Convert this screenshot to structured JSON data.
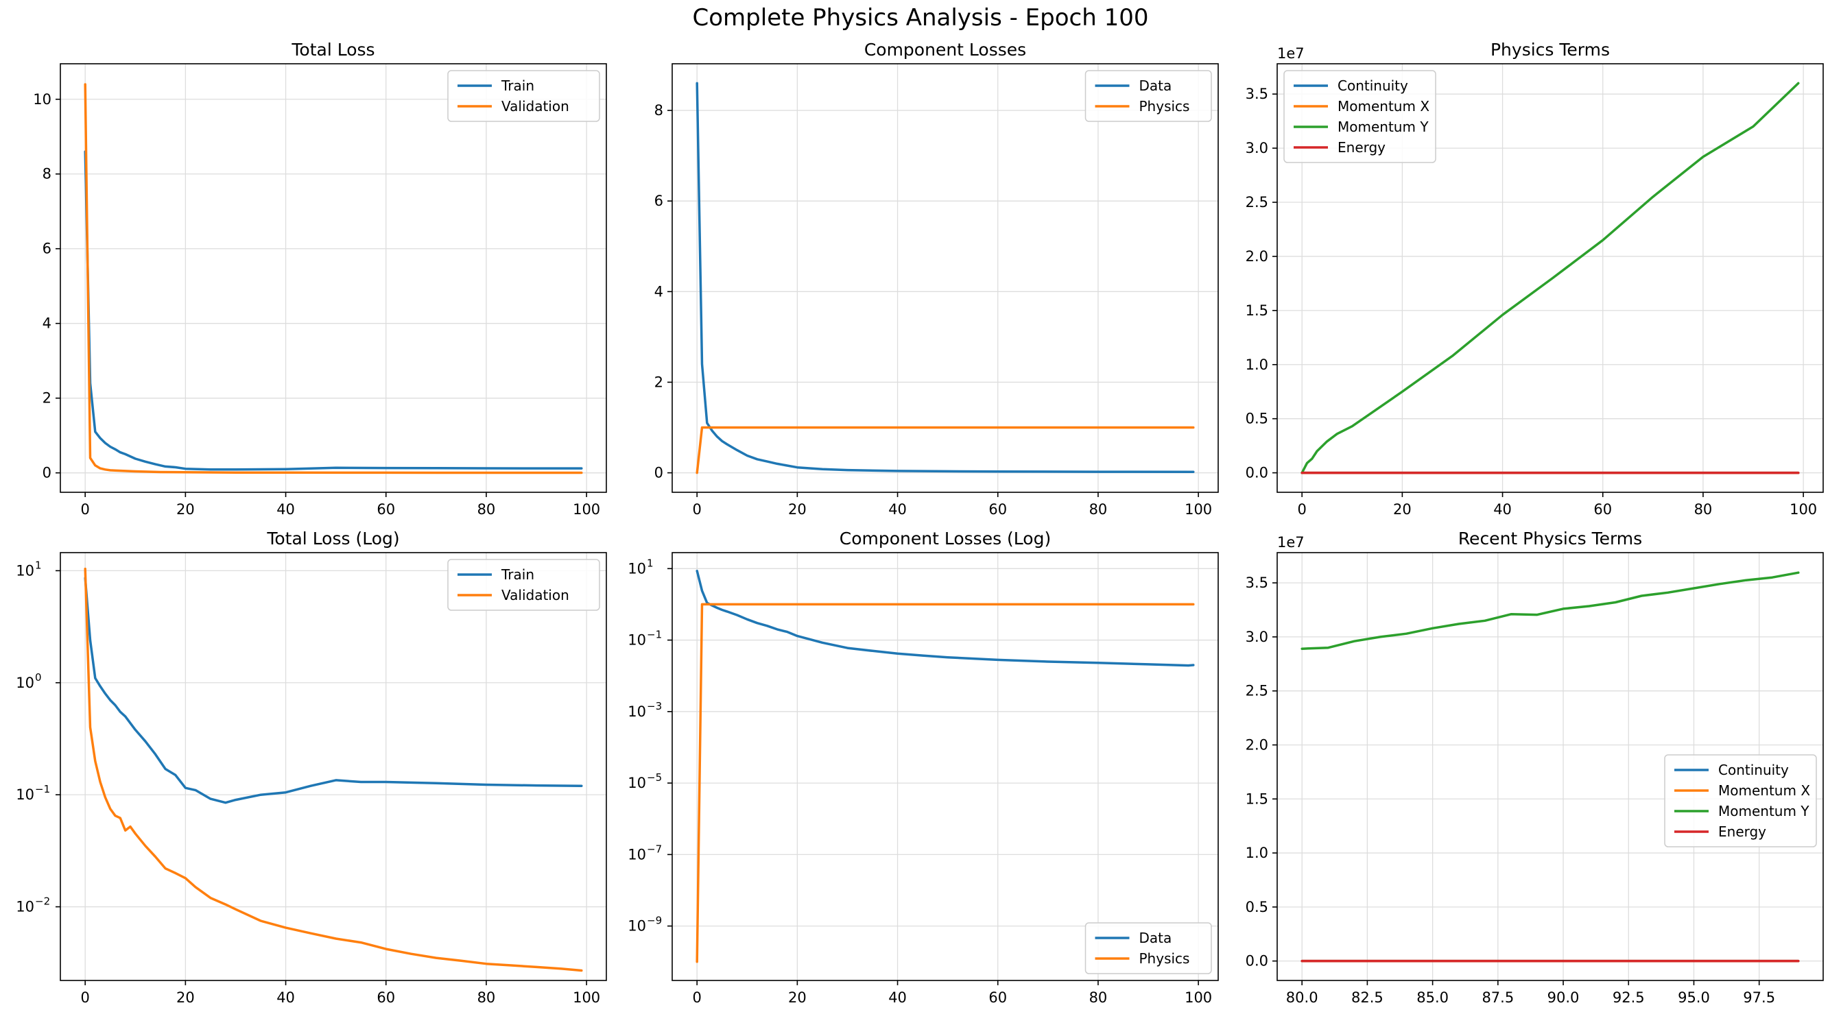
{
  "figure": {
    "suptitle": "Complete Physics Analysis - Epoch 100"
  },
  "colors": {
    "c0": "#1f77b4",
    "c1": "#ff7f0e",
    "c2": "#2ca02c",
    "c3": "#d62728",
    "grid": "#dddddd"
  },
  "chart_data": [
    {
      "id": "p1",
      "type": "line",
      "title": "Total Loss",
      "xlabel": "",
      "ylabel": "",
      "xlim": [
        -4.95,
        103.95
      ],
      "ylim": [
        -0.52,
        10.95
      ],
      "yscale": "linear",
      "xticks": [
        0,
        20,
        40,
        60,
        80,
        100
      ],
      "yticks": [
        0,
        2,
        4,
        6,
        8,
        10
      ],
      "grid": true,
      "legend": "top-right",
      "series": [
        {
          "name": "Train",
          "color": "c0",
          "x": [
            0,
            1,
            2,
            3,
            4,
            5,
            6,
            7,
            8,
            10,
            12,
            14,
            16,
            18,
            20,
            25,
            30,
            40,
            50,
            60,
            70,
            80,
            90,
            99
          ],
          "y": [
            8.6,
            2.4,
            1.1,
            0.93,
            0.8,
            0.7,
            0.63,
            0.55,
            0.5,
            0.38,
            0.3,
            0.23,
            0.17,
            0.15,
            0.11,
            0.09,
            0.09,
            0.1,
            0.135,
            0.13,
            0.127,
            0.123,
            0.121,
            0.12
          ]
        },
        {
          "name": "Validation",
          "color": "c1",
          "x": [
            0,
            1,
            2,
            3,
            4,
            5,
            6,
            8,
            10,
            15,
            20,
            30,
            40,
            60,
            80,
            99
          ],
          "y": [
            10.4,
            0.4,
            0.2,
            0.12,
            0.09,
            0.07,
            0.062,
            0.05,
            0.04,
            0.022,
            0.017,
            0.009,
            0.006,
            0.004,
            0.003,
            0.0028
          ]
        }
      ]
    },
    {
      "id": "p2",
      "type": "line",
      "title": "Component Losses",
      "xlabel": "",
      "ylabel": "",
      "xlim": [
        -4.95,
        103.95
      ],
      "ylim": [
        -0.43,
        9.03
      ],
      "yscale": "linear",
      "xticks": [
        0,
        20,
        40,
        60,
        80,
        100
      ],
      "yticks": [
        0,
        2,
        4,
        6,
        8
      ],
      "grid": true,
      "legend": "top-right",
      "series": [
        {
          "name": "Data",
          "color": "c0",
          "x": [
            0,
            1,
            2,
            3,
            4,
            5,
            6,
            8,
            10,
            12,
            14,
            16,
            20,
            25,
            30,
            40,
            50,
            60,
            80,
            99
          ],
          "y": [
            8.6,
            2.4,
            1.1,
            0.93,
            0.8,
            0.7,
            0.63,
            0.5,
            0.38,
            0.3,
            0.25,
            0.2,
            0.12,
            0.08,
            0.06,
            0.04,
            0.033,
            0.028,
            0.022,
            0.02
          ]
        },
        {
          "name": "Physics",
          "color": "c1",
          "x": [
            0,
            1,
            2,
            99
          ],
          "y": [
            0,
            1,
            1,
            1
          ]
        }
      ]
    },
    {
      "id": "p3",
      "type": "line",
      "title": "Physics Terms",
      "xlabel": "",
      "ylabel": "",
      "xlim": [
        -4.95,
        103.95
      ],
      "ylim": [
        -1800000,
        37800000
      ],
      "yscale": "linear",
      "offset_text": "1e7",
      "xticks": [
        0,
        20,
        40,
        60,
        80,
        100
      ],
      "yticks": [
        0,
        5000000,
        10000000,
        15000000,
        20000000,
        25000000,
        30000000,
        35000000
      ],
      "ytick_labels": [
        "0.0",
        "0.5",
        "1.0",
        "1.5",
        "2.0",
        "2.5",
        "3.0",
        "3.5"
      ],
      "grid": true,
      "legend": "top-left",
      "series": [
        {
          "name": "Continuity",
          "color": "c0",
          "x": [
            0,
            99
          ],
          "y": [
            0,
            0
          ]
        },
        {
          "name": "Momentum X",
          "color": "c1",
          "x": [
            0,
            99
          ],
          "y": [
            0,
            0
          ]
        },
        {
          "name": "Momentum Y",
          "color": "c2",
          "x": [
            0,
            1,
            2,
            3,
            5,
            7,
            10,
            20,
            30,
            40,
            50,
            60,
            70,
            80,
            90,
            99
          ],
          "y": [
            0,
            900000,
            1300000,
            2000000,
            2900000,
            3600000,
            4300000,
            7500000,
            10800000,
            14600000,
            18000000,
            21500000,
            25500000,
            29200000,
            32000000,
            36000000
          ]
        },
        {
          "name": "Energy",
          "color": "c3",
          "x": [
            0,
            99
          ],
          "y": [
            0,
            0
          ]
        }
      ]
    },
    {
      "id": "p4",
      "type": "line",
      "title": "Total Loss (Log)",
      "xlabel": "",
      "ylabel": "",
      "xlim": [
        -4.95,
        103.95
      ],
      "ylim": [
        0.0022,
        14.5
      ],
      "yscale": "log",
      "xticks": [
        0,
        20,
        40,
        60,
        80,
        100
      ],
      "yticks": [
        0.01,
        0.1,
        1,
        10
      ],
      "ytick_labels": [
        [
          "10",
          "−2"
        ],
        [
          "10",
          "−1"
        ],
        [
          "10",
          "0"
        ],
        [
          "10",
          "1"
        ]
      ],
      "grid": true,
      "legend": "top-right",
      "series": [
        {
          "name": "Train",
          "color": "c0",
          "x": [
            0,
            1,
            2,
            3,
            4,
            5,
            6,
            7,
            8,
            10,
            12,
            14,
            16,
            18,
            20,
            22,
            25,
            28,
            30,
            35,
            40,
            45,
            50,
            55,
            60,
            70,
            80,
            90,
            99
          ],
          "y": [
            8.6,
            2.4,
            1.1,
            0.93,
            0.8,
            0.7,
            0.63,
            0.55,
            0.5,
            0.38,
            0.3,
            0.23,
            0.17,
            0.15,
            0.115,
            0.11,
            0.092,
            0.085,
            0.09,
            0.1,
            0.105,
            0.12,
            0.135,
            0.13,
            0.13,
            0.127,
            0.123,
            0.121,
            0.12
          ]
        },
        {
          "name": "Validation",
          "color": "c1",
          "x": [
            0,
            1,
            2,
            3,
            4,
            5,
            6,
            7,
            8,
            9,
            10,
            12,
            14,
            16,
            18,
            20,
            22,
            25,
            28,
            30,
            35,
            40,
            45,
            50,
            55,
            60,
            65,
            70,
            75,
            80,
            85,
            90,
            95,
            99
          ],
          "y": [
            10.4,
            0.4,
            0.2,
            0.13,
            0.095,
            0.075,
            0.065,
            0.062,
            0.048,
            0.052,
            0.045,
            0.035,
            0.028,
            0.022,
            0.02,
            0.018,
            0.015,
            0.012,
            0.0105,
            0.0095,
            0.0075,
            0.0065,
            0.0058,
            0.0052,
            0.0048,
            0.0042,
            0.0038,
            0.0035,
            0.0033,
            0.0031,
            0.003,
            0.0029,
            0.0028,
            0.0027
          ]
        }
      ]
    },
    {
      "id": "p5",
      "type": "line",
      "title": "Component Losses (Log)",
      "xlabel": "",
      "ylabel": "",
      "xlim": [
        -4.95,
        103.95
      ],
      "ylim": [
        3e-11,
        28
      ],
      "yscale": "log",
      "xticks": [
        0,
        20,
        40,
        60,
        80,
        100
      ],
      "yticks": [
        1e-09,
        1e-07,
        1e-05,
        0.001,
        0.1,
        10
      ],
      "ytick_labels": [
        [
          "10",
          "−9"
        ],
        [
          "10",
          "−7"
        ],
        [
          "10",
          "−5"
        ],
        [
          "10",
          "−3"
        ],
        [
          "10",
          "−1"
        ],
        [
          "10",
          "1"
        ]
      ],
      "grid": true,
      "legend": "bottom-right",
      "series": [
        {
          "name": "Data",
          "color": "c0",
          "x": [
            0,
            1,
            2,
            3,
            4,
            5,
            6,
            8,
            10,
            12,
            14,
            16,
            18,
            20,
            22,
            25,
            30,
            35,
            40,
            45,
            50,
            60,
            70,
            80,
            90,
            98,
            99
          ],
          "y": [
            8.6,
            2.4,
            1.1,
            0.93,
            0.8,
            0.7,
            0.63,
            0.5,
            0.38,
            0.3,
            0.25,
            0.2,
            0.17,
            0.13,
            0.11,
            0.085,
            0.06,
            0.05,
            0.042,
            0.037,
            0.033,
            0.028,
            0.025,
            0.023,
            0.021,
            0.0195,
            0.02
          ]
        },
        {
          "name": "Physics",
          "color": "c1",
          "x": [
            0,
            1,
            2,
            99
          ],
          "y": [
            1e-10,
            1,
            1,
            1
          ]
        }
      ]
    },
    {
      "id": "p6",
      "type": "line",
      "title": "Recent Physics Terms",
      "xlabel": "",
      "ylabel": "",
      "xlim": [
        79.05,
        99.95
      ],
      "ylim": [
        -1800000,
        37800000
      ],
      "yscale": "linear",
      "offset_text": "1e7",
      "xticks": [
        80,
        82.5,
        85,
        87.5,
        90,
        92.5,
        95,
        97.5
      ],
      "xtick_labels": [
        "80.0",
        "82.5",
        "85.0",
        "87.5",
        "90.0",
        "92.5",
        "95.0",
        "97.5"
      ],
      "yticks": [
        0,
        5000000,
        10000000,
        15000000,
        20000000,
        25000000,
        30000000,
        35000000
      ],
      "ytick_labels": [
        "0.0",
        "0.5",
        "1.0",
        "1.5",
        "2.0",
        "2.5",
        "3.0",
        "3.5"
      ],
      "grid": true,
      "legend": "center-right",
      "series": [
        {
          "name": "Continuity",
          "color": "c0",
          "x": [
            80,
            99
          ],
          "y": [
            0,
            0
          ]
        },
        {
          "name": "Momentum X",
          "color": "c1",
          "x": [
            80,
            99
          ],
          "y": [
            0,
            0
          ]
        },
        {
          "name": "Momentum Y",
          "color": "c2",
          "x": [
            80,
            81,
            82,
            83,
            84,
            85,
            86,
            87,
            88,
            89,
            90,
            91,
            92,
            93,
            94,
            95,
            96,
            97,
            98,
            99
          ],
          "y": [
            28900000,
            29000000,
            29600000,
            30000000,
            30300000,
            30800000,
            31200000,
            31500000,
            32100000,
            32050000,
            32600000,
            32850000,
            33200000,
            33800000,
            34100000,
            34500000,
            34900000,
            35250000,
            35500000,
            35950000
          ]
        },
        {
          "name": "Energy",
          "color": "c3",
          "x": [
            80,
            99
          ],
          "y": [
            0,
            0
          ]
        }
      ]
    }
  ]
}
